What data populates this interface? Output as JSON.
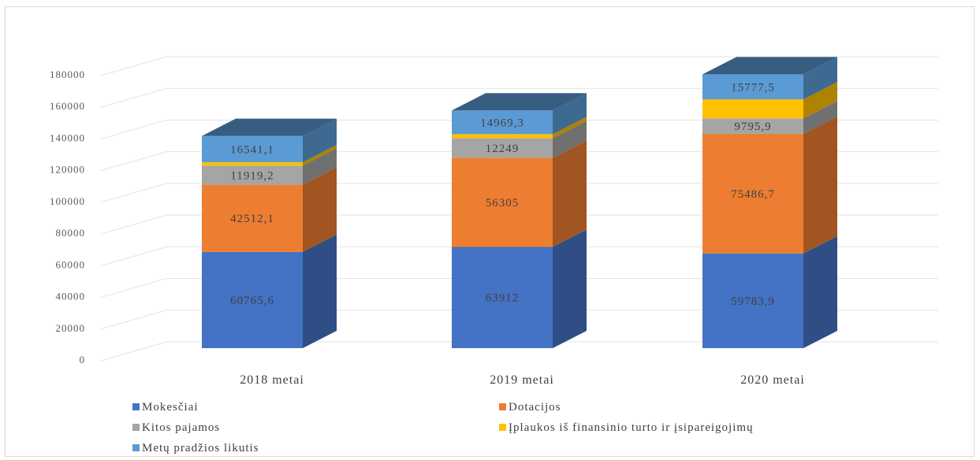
{
  "chart_data": {
    "type": "bar",
    "stacked": true,
    "style": "3d-column",
    "categories": [
      "2018 metai",
      "2019 metai",
      "2020 metai"
    ],
    "series": [
      {
        "name": "Mokesčiai",
        "color": "#4472C4",
        "values": [
          60765.6,
          63912,
          59783.9
        ],
        "labels": [
          "60765,6",
          "63912",
          "59783,9"
        ]
      },
      {
        "name": "Dotacijos",
        "color": "#ED7D31",
        "values": [
          42512.1,
          56305,
          75486.7
        ],
        "labels": [
          "42512,1",
          "56305",
          "75486,7"
        ]
      },
      {
        "name": "Kitos pajamos",
        "color": "#A5A5A5",
        "values": [
          11919.2,
          12249,
          9795.9
        ],
        "labels": [
          "11919,2",
          "12249",
          "9795,9"
        ]
      },
      {
        "name": "Įplaukos iš finansinio turto ir įsipareigojimų",
        "color": "#FFC000",
        "values": [
          2200,
          2600,
          12000
        ],
        "labels": [
          "",
          "",
          ""
        ]
      },
      {
        "name": "Metų pradžios likutis",
        "color": "#5B9BD5",
        "values": [
          16541.1,
          14969.3,
          15777.5
        ],
        "labels": [
          "16541,1",
          "14969,3",
          "15777,5"
        ]
      }
    ],
    "yticks": [
      "0",
      "20000",
      "40000",
      "60000",
      "80000",
      "100000",
      "120000",
      "140000",
      "160000",
      "180000"
    ],
    "ylim": [
      0,
      180000
    ],
    "grid": true,
    "legend_position": "bottom"
  }
}
